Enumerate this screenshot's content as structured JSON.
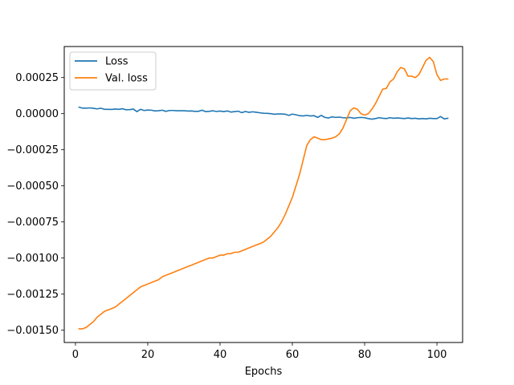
{
  "chart_data": {
    "type": "line",
    "title": "",
    "xlabel": "Epochs",
    "ylabel": "",
    "xlim": [
      -3.1,
      107.1
    ],
    "ylim": [
      -0.001585,
      0.000465
    ],
    "x_ticks": [
      0,
      20,
      40,
      60,
      80,
      100
    ],
    "y_ticks": [
      -0.0015,
      -0.00125,
      -0.001,
      -0.00075,
      -0.0005,
      -0.00025,
      0.0,
      0.00025
    ],
    "y_tick_labels": [
      "−0.00150",
      "−0.00125",
      "−0.00100",
      "−0.00075",
      "−0.00050",
      "−0.00025",
      "0.00000",
      "0.00025"
    ],
    "x_tick_labels": [
      "0",
      "20",
      "40",
      "60",
      "80",
      "100"
    ],
    "grid": false,
    "legend_position": "upper-left",
    "series": [
      {
        "name": "Loss",
        "color": "#1f77b4",
        "x": [
          1,
          2,
          3,
          4,
          5,
          6,
          7,
          8,
          9,
          10,
          11,
          12,
          13,
          14,
          15,
          16,
          17,
          18,
          19,
          20,
          21,
          22,
          23,
          24,
          25,
          26,
          27,
          28,
          29,
          30,
          31,
          32,
          33,
          34,
          35,
          36,
          37,
          38,
          39,
          40,
          41,
          42,
          43,
          44,
          45,
          46,
          47,
          48,
          49,
          50,
          51,
          52,
          53,
          54,
          55,
          56,
          57,
          58,
          59,
          60,
          61,
          62,
          63,
          64,
          65,
          66,
          67,
          68,
          69,
          70,
          71,
          72,
          73,
          74,
          75,
          76,
          77,
          78,
          79,
          80,
          81,
          82,
          83,
          84,
          85,
          86,
          87,
          88,
          89,
          90,
          91,
          92,
          93,
          94,
          95,
          96,
          97,
          98,
          99,
          100,
          101,
          102,
          103
        ],
        "values": [
          4.5e-05,
          3.8e-05,
          3.8e-05,
          4e-05,
          3.7e-05,
          3.3e-05,
          3.8e-05,
          3e-05,
          3e-05,
          2.9e-05,
          3.2e-05,
          3e-05,
          3.4e-05,
          2.7e-05,
          2.8e-05,
          3.2e-05,
          1.4e-05,
          3e-05,
          2.2e-05,
          2.5e-05,
          2.4e-05,
          1.9e-05,
          2e-05,
          2.4e-05,
          1.6e-05,
          2.2e-05,
          2.2e-05,
          2e-05,
          2e-05,
          2e-05,
          1.8e-05,
          1.9e-05,
          1.6e-05,
          1.6e-05,
          2.4e-05,
          1.4e-05,
          1.6e-05,
          2e-05,
          1.5e-05,
          1.8e-05,
          1.4e-05,
          1.9e-05,
          1.1e-05,
          1.4e-05,
          1.7e-05,
          7e-06,
          1.5e-05,
          9e-06,
          1.3e-05,
          1e-05,
          6e-06,
          3e-06,
          2e-06,
          0.0,
          -4e-06,
          -2e-06,
          -2e-06,
          -4e-06,
          -1.2e-05,
          -3e-06,
          -8e-06,
          -1.4e-05,
          -1.6e-05,
          -1.2e-05,
          -1.6e-05,
          -1.4e-05,
          -2.6e-05,
          -1.2e-05,
          -2.6e-05,
          -3e-05,
          -2.2e-05,
          -2.6e-05,
          -2.4e-05,
          -2.8e-05,
          -3e-05,
          -2.6e-05,
          -3.2e-05,
          -2.8e-05,
          -2.6e-05,
          -2.8e-05,
          -3.4e-05,
          -3.8e-05,
          -3.4e-05,
          -2.8e-05,
          -3.2e-05,
          -3.4e-05,
          -2.8e-05,
          -3.2e-05,
          -3e-05,
          -3.2e-05,
          -3.4e-05,
          -3e-05,
          -3.4e-05,
          -3.2e-05,
          -3.6e-05,
          -3.4e-05,
          -3.6e-05,
          -3.2e-05,
          -3.4e-05,
          -3.4e-05,
          -2e-05,
          -3.6e-05,
          -3.2e-05
        ]
      },
      {
        "name": "Val. loss",
        "color": "#ff7f0e",
        "x": [
          1,
          2,
          3,
          4,
          5,
          6,
          7,
          8,
          9,
          10,
          11,
          12,
          13,
          14,
          15,
          16,
          17,
          18,
          19,
          20,
          21,
          22,
          23,
          24,
          25,
          26,
          27,
          28,
          29,
          30,
          31,
          32,
          33,
          34,
          35,
          36,
          37,
          38,
          39,
          40,
          41,
          42,
          43,
          44,
          45,
          46,
          47,
          48,
          49,
          50,
          51,
          52,
          53,
          54,
          55,
          56,
          57,
          58,
          59,
          60,
          61,
          62,
          63,
          64,
          65,
          66,
          67,
          68,
          69,
          70,
          71,
          72,
          73,
          74,
          75,
          76,
          77,
          78,
          79,
          80,
          81,
          82,
          83,
          84,
          85,
          86,
          87,
          88,
          89,
          90,
          91,
          92,
          93,
          94,
          95,
          96,
          97,
          98,
          99,
          100,
          101,
          102,
          103
        ],
        "values": [
          -0.00149,
          -0.00149,
          -0.00148,
          -0.00146,
          -0.00144,
          -0.00141,
          -0.00139,
          -0.00137,
          -0.00136,
          -0.00135,
          -0.00134,
          -0.00132,
          -0.0013,
          -0.00128,
          -0.00126,
          -0.00124,
          -0.00122,
          -0.0012,
          -0.00119,
          -0.00118,
          -0.00117,
          -0.00116,
          -0.00115,
          -0.00113,
          -0.00112,
          -0.00111,
          -0.0011,
          -0.00109,
          -0.00108,
          -0.00107,
          -0.00106,
          -0.00105,
          -0.00104,
          -0.00103,
          -0.00102,
          -0.00101,
          -0.001,
          -0.001,
          -0.00099,
          -0.00098,
          -0.00098,
          -0.00097,
          -0.00097,
          -0.00096,
          -0.00096,
          -0.00095,
          -0.00094,
          -0.00093,
          -0.00092,
          -0.00091,
          -0.0009,
          -0.00089,
          -0.00087,
          -0.00085,
          -0.00082,
          -0.00079,
          -0.00075,
          -0.0007,
          -0.00064,
          -0.00058,
          -0.0005,
          -0.00042,
          -0.00032,
          -0.00022,
          -0.00018,
          -0.00016,
          -0.00017,
          -0.00018,
          -0.00018,
          -0.000175,
          -0.00017,
          -0.00016,
          -0.00014,
          -0.0001,
          -4e-05,
          2e-05,
          4e-05,
          3e-05,
          0.0,
          -1e-05,
          0.0,
          3e-05,
          7e-05,
          0.00012,
          0.00017,
          0.000175,
          0.00022,
          0.00024,
          0.00029,
          0.00032,
          0.00031,
          0.00026,
          0.00026,
          0.00025,
          0.00027,
          0.00032,
          0.00037,
          0.00039,
          0.00036,
          0.00027,
          0.00023,
          0.00024,
          0.00024
        ]
      }
    ]
  }
}
